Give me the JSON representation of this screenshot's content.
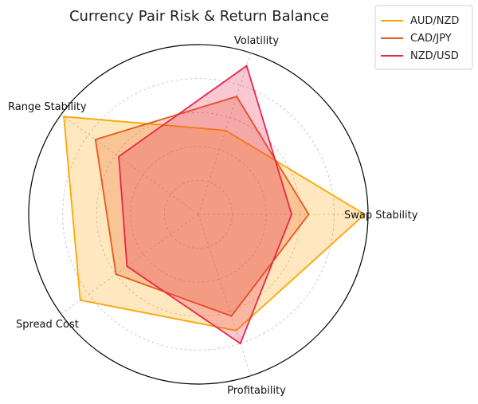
{
  "chart_data": {
    "type": "radar",
    "title": "Currency Pair Risk & Return Balance",
    "axes": [
      "Swap Stability",
      "Volatility",
      "Range Stability",
      "Spread Cost",
      "Profitability"
    ],
    "rmax": 1.0,
    "rings": [
      0.2,
      0.4,
      0.6,
      0.8,
      1.0
    ],
    "grid": true,
    "legend_position": "top-right",
    "series": [
      {
        "name": "AUD/NZD",
        "values": [
          0.98,
          0.52,
          0.98,
          0.86,
          0.72
        ],
        "color": "#FFA500"
      },
      {
        "name": "CAD/JPY",
        "values": [
          0.65,
          0.73,
          0.75,
          0.6,
          0.63
        ],
        "color": "#E8581C"
      },
      {
        "name": "NZD/USD",
        "values": [
          0.55,
          0.92,
          0.58,
          0.52,
          0.8
        ],
        "color": "#E8254A"
      }
    ]
  }
}
